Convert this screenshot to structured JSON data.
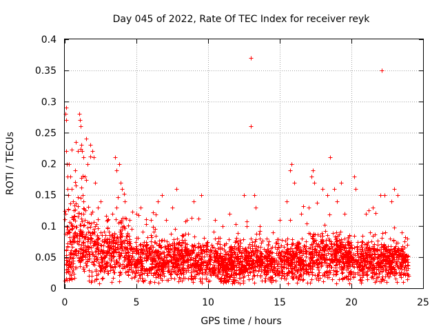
{
  "chart_data": {
    "type": "scatter",
    "title": "Day 045 of 2022, Rate Of TEC Index for receiver reyk",
    "xlabel": "GPS time / hours",
    "ylabel": "ROTI / TECUs",
    "xlim": [
      0,
      25
    ],
    "ylim": [
      0,
      0.4
    ],
    "xticks": [
      0,
      5,
      10,
      15,
      20,
      25
    ],
    "xtick_labels": [
      "0",
      "5",
      "10",
      "15",
      "20",
      "25"
    ],
    "yticks": [
      0,
      0.05,
      0.1,
      0.15,
      0.2,
      0.25,
      0.3,
      0.35,
      0.4
    ],
    "ytick_labels": [
      "0",
      "0.05",
      "0.1",
      "0.15",
      "0.2",
      "0.25",
      "0.3",
      "0.35",
      "0.4"
    ],
    "grid": true,
    "marker": "+",
    "color": "#ff0000",
    "series": [
      {
        "name": "ROTI",
        "points": [
          [
            0.05,
            0.28
          ],
          [
            0.08,
            0.29
          ],
          [
            0.1,
            0.27
          ],
          [
            0.12,
            0.22
          ],
          [
            0.15,
            0.2
          ],
          [
            0.2,
            0.16
          ],
          [
            0.25,
            0.15
          ],
          [
            0.3,
            0.2
          ],
          [
            0.4,
            0.18
          ],
          [
            0.5,
            0.16
          ],
          [
            0.6,
            0.14
          ],
          [
            0.7,
            0.19
          ],
          [
            0.9,
            0.22
          ],
          [
            1.0,
            0.28
          ],
          [
            1.05,
            0.27
          ],
          [
            1.1,
            0.26
          ],
          [
            1.15,
            0.23
          ],
          [
            1.2,
            0.22
          ],
          [
            1.3,
            0.21
          ],
          [
            1.4,
            0.18
          ],
          [
            1.5,
            0.24
          ],
          [
            1.6,
            0.2
          ],
          [
            1.8,
            0.23
          ],
          [
            1.9,
            0.22
          ],
          [
            2.0,
            0.21
          ],
          [
            2.1,
            0.17
          ],
          [
            2.3,
            0.13
          ],
          [
            2.5,
            0.14
          ],
          [
            3.0,
            0.11
          ],
          [
            3.3,
            0.12
          ],
          [
            3.5,
            0.21
          ],
          [
            3.6,
            0.19
          ],
          [
            3.8,
            0.2
          ],
          [
            3.9,
            0.17
          ],
          [
            4.0,
            0.16
          ],
          [
            4.2,
            0.14
          ],
          [
            4.5,
            0.11
          ],
          [
            5.0,
            0.12
          ],
          [
            5.3,
            0.13
          ],
          [
            6.0,
            0.11
          ],
          [
            6.5,
            0.14
          ],
          [
            6.8,
            0.15
          ],
          [
            7.5,
            0.13
          ],
          [
            7.8,
            0.16
          ],
          [
            8.5,
            0.11
          ],
          [
            9.0,
            0.14
          ],
          [
            9.5,
            0.15
          ],
          [
            10.5,
            0.11
          ],
          [
            11.0,
            0.1
          ],
          [
            11.5,
            0.12
          ],
          [
            12.5,
            0.15
          ],
          [
            13.0,
            0.37
          ],
          [
            13.0,
            0.26
          ],
          [
            13.2,
            0.15
          ],
          [
            13.3,
            0.13
          ],
          [
            13.6,
            0.1
          ],
          [
            14.5,
            0.09
          ],
          [
            15.0,
            0.11
          ],
          [
            15.5,
            0.14
          ],
          [
            15.7,
            0.19
          ],
          [
            15.8,
            0.2
          ],
          [
            16.0,
            0.17
          ],
          [
            16.5,
            0.12
          ],
          [
            17.0,
            0.13
          ],
          [
            17.2,
            0.18
          ],
          [
            17.3,
            0.19
          ],
          [
            17.4,
            0.17
          ],
          [
            18.0,
            0.16
          ],
          [
            18.3,
            0.15
          ],
          [
            18.5,
            0.21
          ],
          [
            18.8,
            0.16
          ],
          [
            19.0,
            0.14
          ],
          [
            19.3,
            0.17
          ],
          [
            19.5,
            0.12
          ],
          [
            20.2,
            0.18
          ],
          [
            20.3,
            0.16
          ],
          [
            21.0,
            0.12
          ],
          [
            21.5,
            0.13
          ],
          [
            22.0,
            0.15
          ],
          [
            22.1,
            0.35
          ],
          [
            22.3,
            0.15
          ],
          [
            22.8,
            0.14
          ],
          [
            23.0,
            0.16
          ],
          [
            23.2,
            0.15
          ],
          [
            23.5,
            0.09
          ],
          [
            23.9,
            0.08
          ]
        ],
        "envelope": {
          "hours": [
            0,
            0.5,
            1,
            1.5,
            2,
            2.5,
            3,
            3.5,
            4,
            4.5,
            5,
            6,
            7,
            8,
            9,
            10,
            11,
            12,
            13,
            14,
            15,
            16,
            17,
            18,
            19,
            20,
            21,
            22,
            23,
            24
          ],
          "typical": [
            0.07,
            0.07,
            0.075,
            0.07,
            0.065,
            0.05,
            0.06,
            0.06,
            0.07,
            0.05,
            0.045,
            0.045,
            0.045,
            0.05,
            0.045,
            0.045,
            0.04,
            0.04,
            0.045,
            0.04,
            0.045,
            0.045,
            0.045,
            0.05,
            0.05,
            0.045,
            0.045,
            0.045,
            0.045,
            0.04
          ],
          "spread": [
            0.05,
            0.05,
            0.05,
            0.045,
            0.04,
            0.03,
            0.035,
            0.035,
            0.04,
            0.03,
            0.025,
            0.025,
            0.025,
            0.025,
            0.025,
            0.025,
            0.025,
            0.025,
            0.025,
            0.025,
            0.025,
            0.025,
            0.03,
            0.03,
            0.03,
            0.025,
            0.025,
            0.025,
            0.025,
            0.02
          ],
          "point_count": 5200
        }
      }
    ]
  }
}
